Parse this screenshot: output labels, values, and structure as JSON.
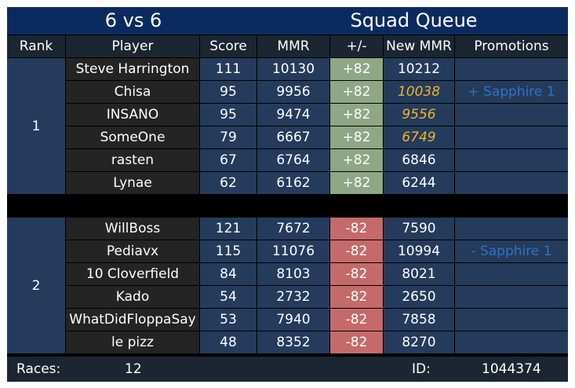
{
  "title": {
    "mode": "6 vs 6",
    "queue": "Squad Queue"
  },
  "headers": [
    "Rank",
    "Player",
    "Score",
    "MMR",
    "+/-",
    "New MMR",
    "Promotions"
  ],
  "teams": [
    {
      "rank": "1",
      "delta": "+82",
      "players": [
        {
          "name": "Steve Harrington",
          "score": "111",
          "mmr": "10130",
          "new_mmr": "10212",
          "highlight": false,
          "promotion": ""
        },
        {
          "name": "Chisa",
          "score": "95",
          "mmr": "9956",
          "new_mmr": "10038",
          "highlight": true,
          "promotion": "+ Sapphire 1"
        },
        {
          "name": "INSANO",
          "score": "95",
          "mmr": "9474",
          "new_mmr": "9556",
          "highlight": true,
          "promotion": ""
        },
        {
          "name": "SomeOne",
          "score": "79",
          "mmr": "6667",
          "new_mmr": "6749",
          "highlight": true,
          "promotion": ""
        },
        {
          "name": "rasten",
          "score": "67",
          "mmr": "6764",
          "new_mmr": "6846",
          "highlight": false,
          "promotion": ""
        },
        {
          "name": "Lynae",
          "score": "62",
          "mmr": "6162",
          "new_mmr": "6244",
          "highlight": false,
          "promotion": ""
        }
      ]
    },
    {
      "rank": "2",
      "delta": "-82",
      "players": [
        {
          "name": "WillBoss",
          "score": "121",
          "mmr": "7672",
          "new_mmr": "7590",
          "highlight": false,
          "promotion": ""
        },
        {
          "name": "Pediavx",
          "score": "115",
          "mmr": "11076",
          "new_mmr": "10994",
          "highlight": false,
          "promotion": "- Sapphire 1"
        },
        {
          "name": "10 Cloverfield",
          "score": "84",
          "mmr": "8103",
          "new_mmr": "8021",
          "highlight": false,
          "promotion": ""
        },
        {
          "name": "Kado",
          "score": "54",
          "mmr": "2732",
          "new_mmr": "2650",
          "highlight": false,
          "promotion": ""
        },
        {
          "name": "WhatDidFloppaSay",
          "score": "53",
          "mmr": "7940",
          "new_mmr": "7858",
          "highlight": false,
          "promotion": ""
        },
        {
          "name": "le pizz",
          "score": "48",
          "mmr": "8352",
          "new_mmr": "8270",
          "highlight": false,
          "promotion": ""
        }
      ]
    }
  ],
  "footer": {
    "races_label": "Races:",
    "races_value": "12",
    "id_label": "ID:",
    "id_value": "1044374"
  },
  "colors": {
    "title_bg": "#0b2b60",
    "blue_cell": "#243b5c",
    "player_cell": "#242424",
    "gain": "#8ea785",
    "loss": "#c56a6a",
    "highlight": "#f0b423",
    "promotion": "#2f72c4"
  }
}
